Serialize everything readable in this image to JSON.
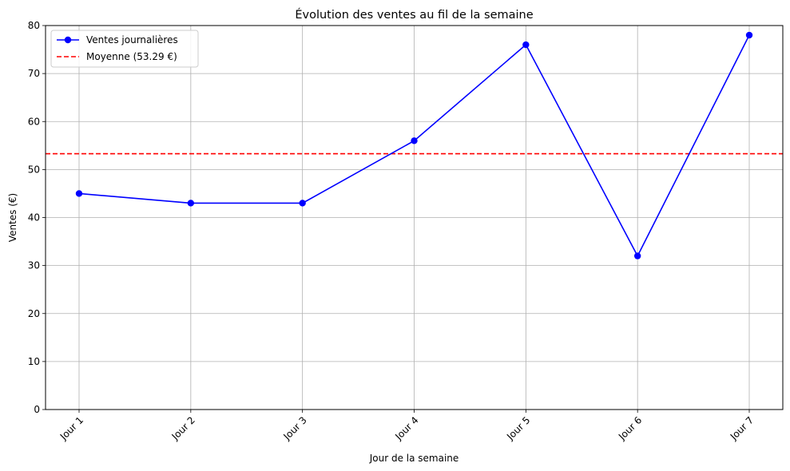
{
  "chart_data": {
    "type": "line",
    "title": "Évolution des ventes au fil de la semaine",
    "xlabel": "Jour de la semaine",
    "ylabel": "Ventes (€)",
    "categories": [
      "Jour 1",
      "Jour 2",
      "Jour 3",
      "Jour 4",
      "Jour 5",
      "Jour 6",
      "Jour 7"
    ],
    "series": [
      {
        "name": "Ventes journalières",
        "values": [
          45,
          43,
          43,
          56,
          76,
          32,
          78
        ],
        "color": "#0000ff",
        "marker": "circle"
      }
    ],
    "reference_lines": [
      {
        "name": "Moyenne (53.29 €)",
        "value": 53.29,
        "color": "#ff0000",
        "style": "dashed"
      }
    ],
    "ylim": [
      0,
      80
    ],
    "yticks": [
      0,
      10,
      20,
      30,
      40,
      50,
      60,
      70,
      80
    ],
    "grid": true,
    "legend_position": "top-left",
    "xtick_rotation": 45
  }
}
